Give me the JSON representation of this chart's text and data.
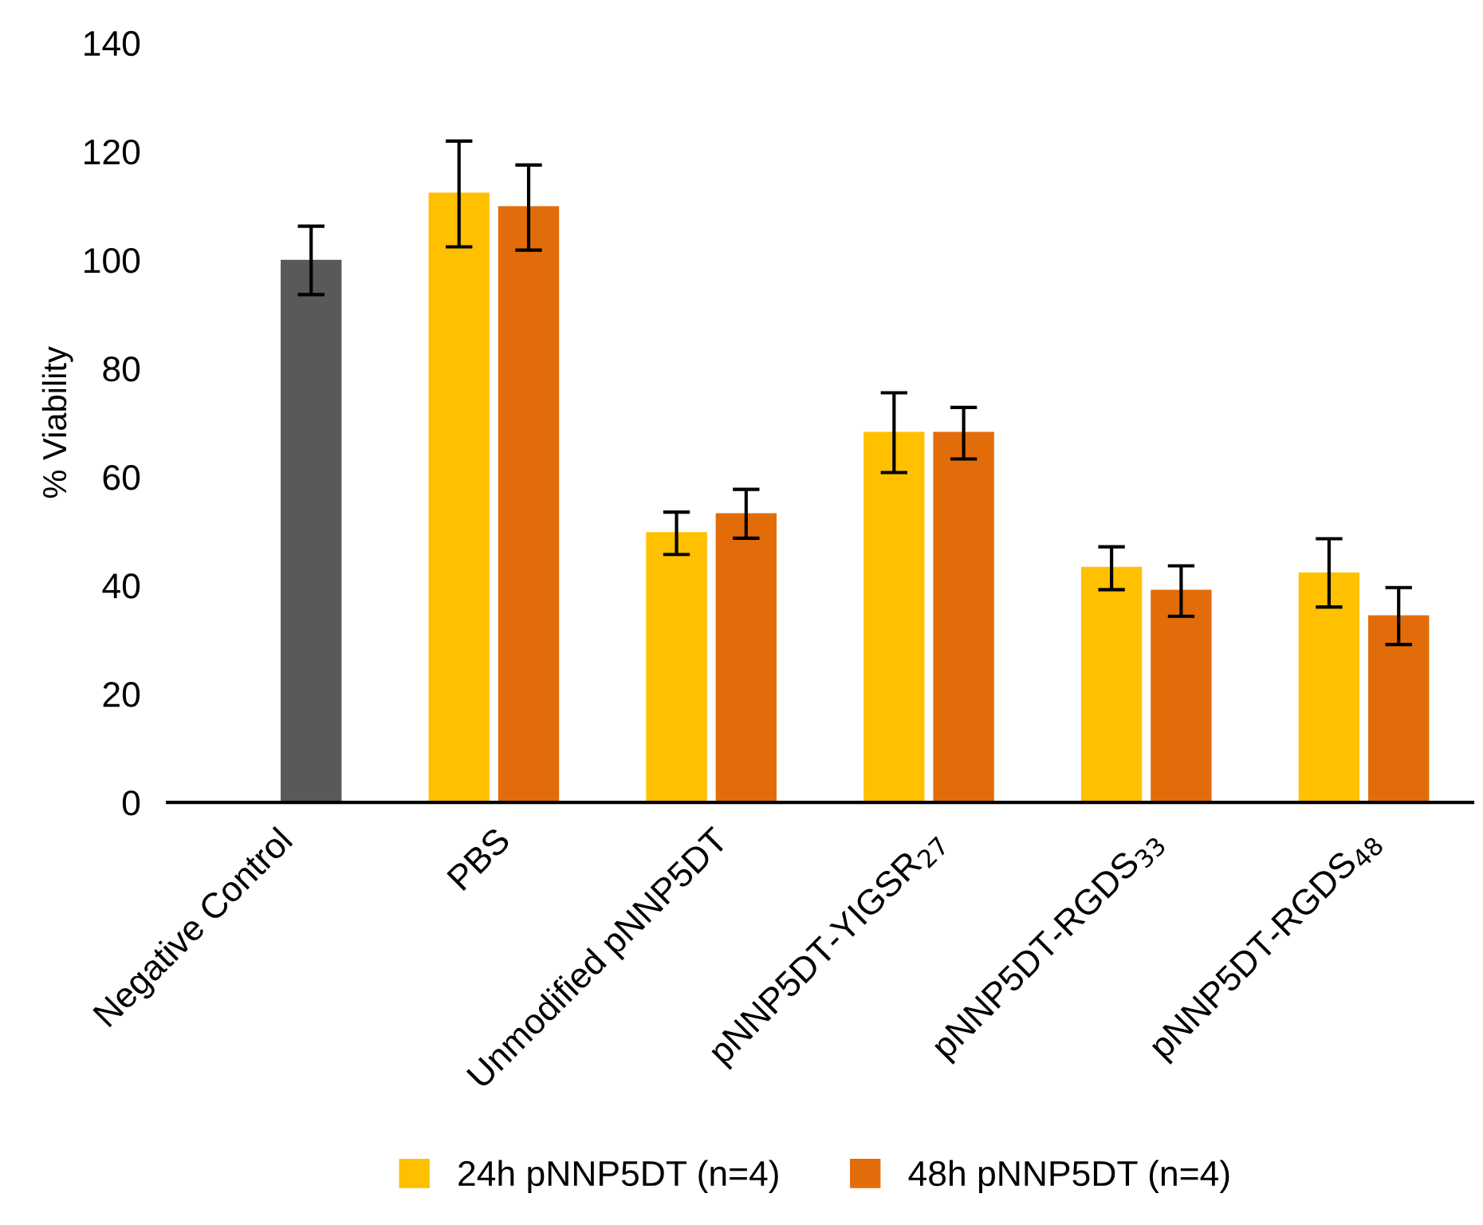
{
  "chart_data": {
    "type": "bar",
    "ylabel": "% Viability",
    "categories": [
      "Negative Control",
      "PBS",
      "Unmodified pNNP5DT",
      "pNNP5DT-YIGSR$_{27}$",
      "pNNP5DT-RGDS$_{33}$",
      "pNNP5DT-RGDS$_{48}$"
    ],
    "series": [
      {
        "name": "24h pNNP5DT (n=4)",
        "color": "#ffc000",
        "values": [
          0,
          112.4,
          49.8,
          68.3,
          43.4,
          42.4
        ],
        "errors": [
          null,
          [
            102.4,
            121.9
          ],
          [
            45.7,
            53.5
          ],
          [
            60.8,
            75.5
          ],
          [
            39.2,
            47.1
          ],
          [
            36.0,
            48.6
          ]
        ]
      },
      {
        "name": "48h pNNP5DT (n=4)",
        "color": "#e36c0a",
        "colors": [
          "#595959",
          "#e36c0a",
          "#e36c0a",
          "#e36c0a",
          "#e36c0a",
          "#e36c0a"
        ],
        "values": [
          100.0,
          109.9,
          53.3,
          68.3,
          39.2,
          34.5
        ],
        "errors": [
          [
            93.6,
            106.2
          ],
          [
            101.8,
            117.5
          ],
          [
            48.7,
            57.7
          ],
          [
            63.3,
            72.8
          ],
          [
            34.3,
            43.6
          ],
          [
            29.1,
            39.6
          ]
        ]
      }
    ],
    "ylim": [
      0,
      140
    ],
    "yticks": [
      0,
      20,
      40,
      60,
      80,
      100,
      120,
      140
    ],
    "grid": false,
    "legend": "bottom"
  }
}
